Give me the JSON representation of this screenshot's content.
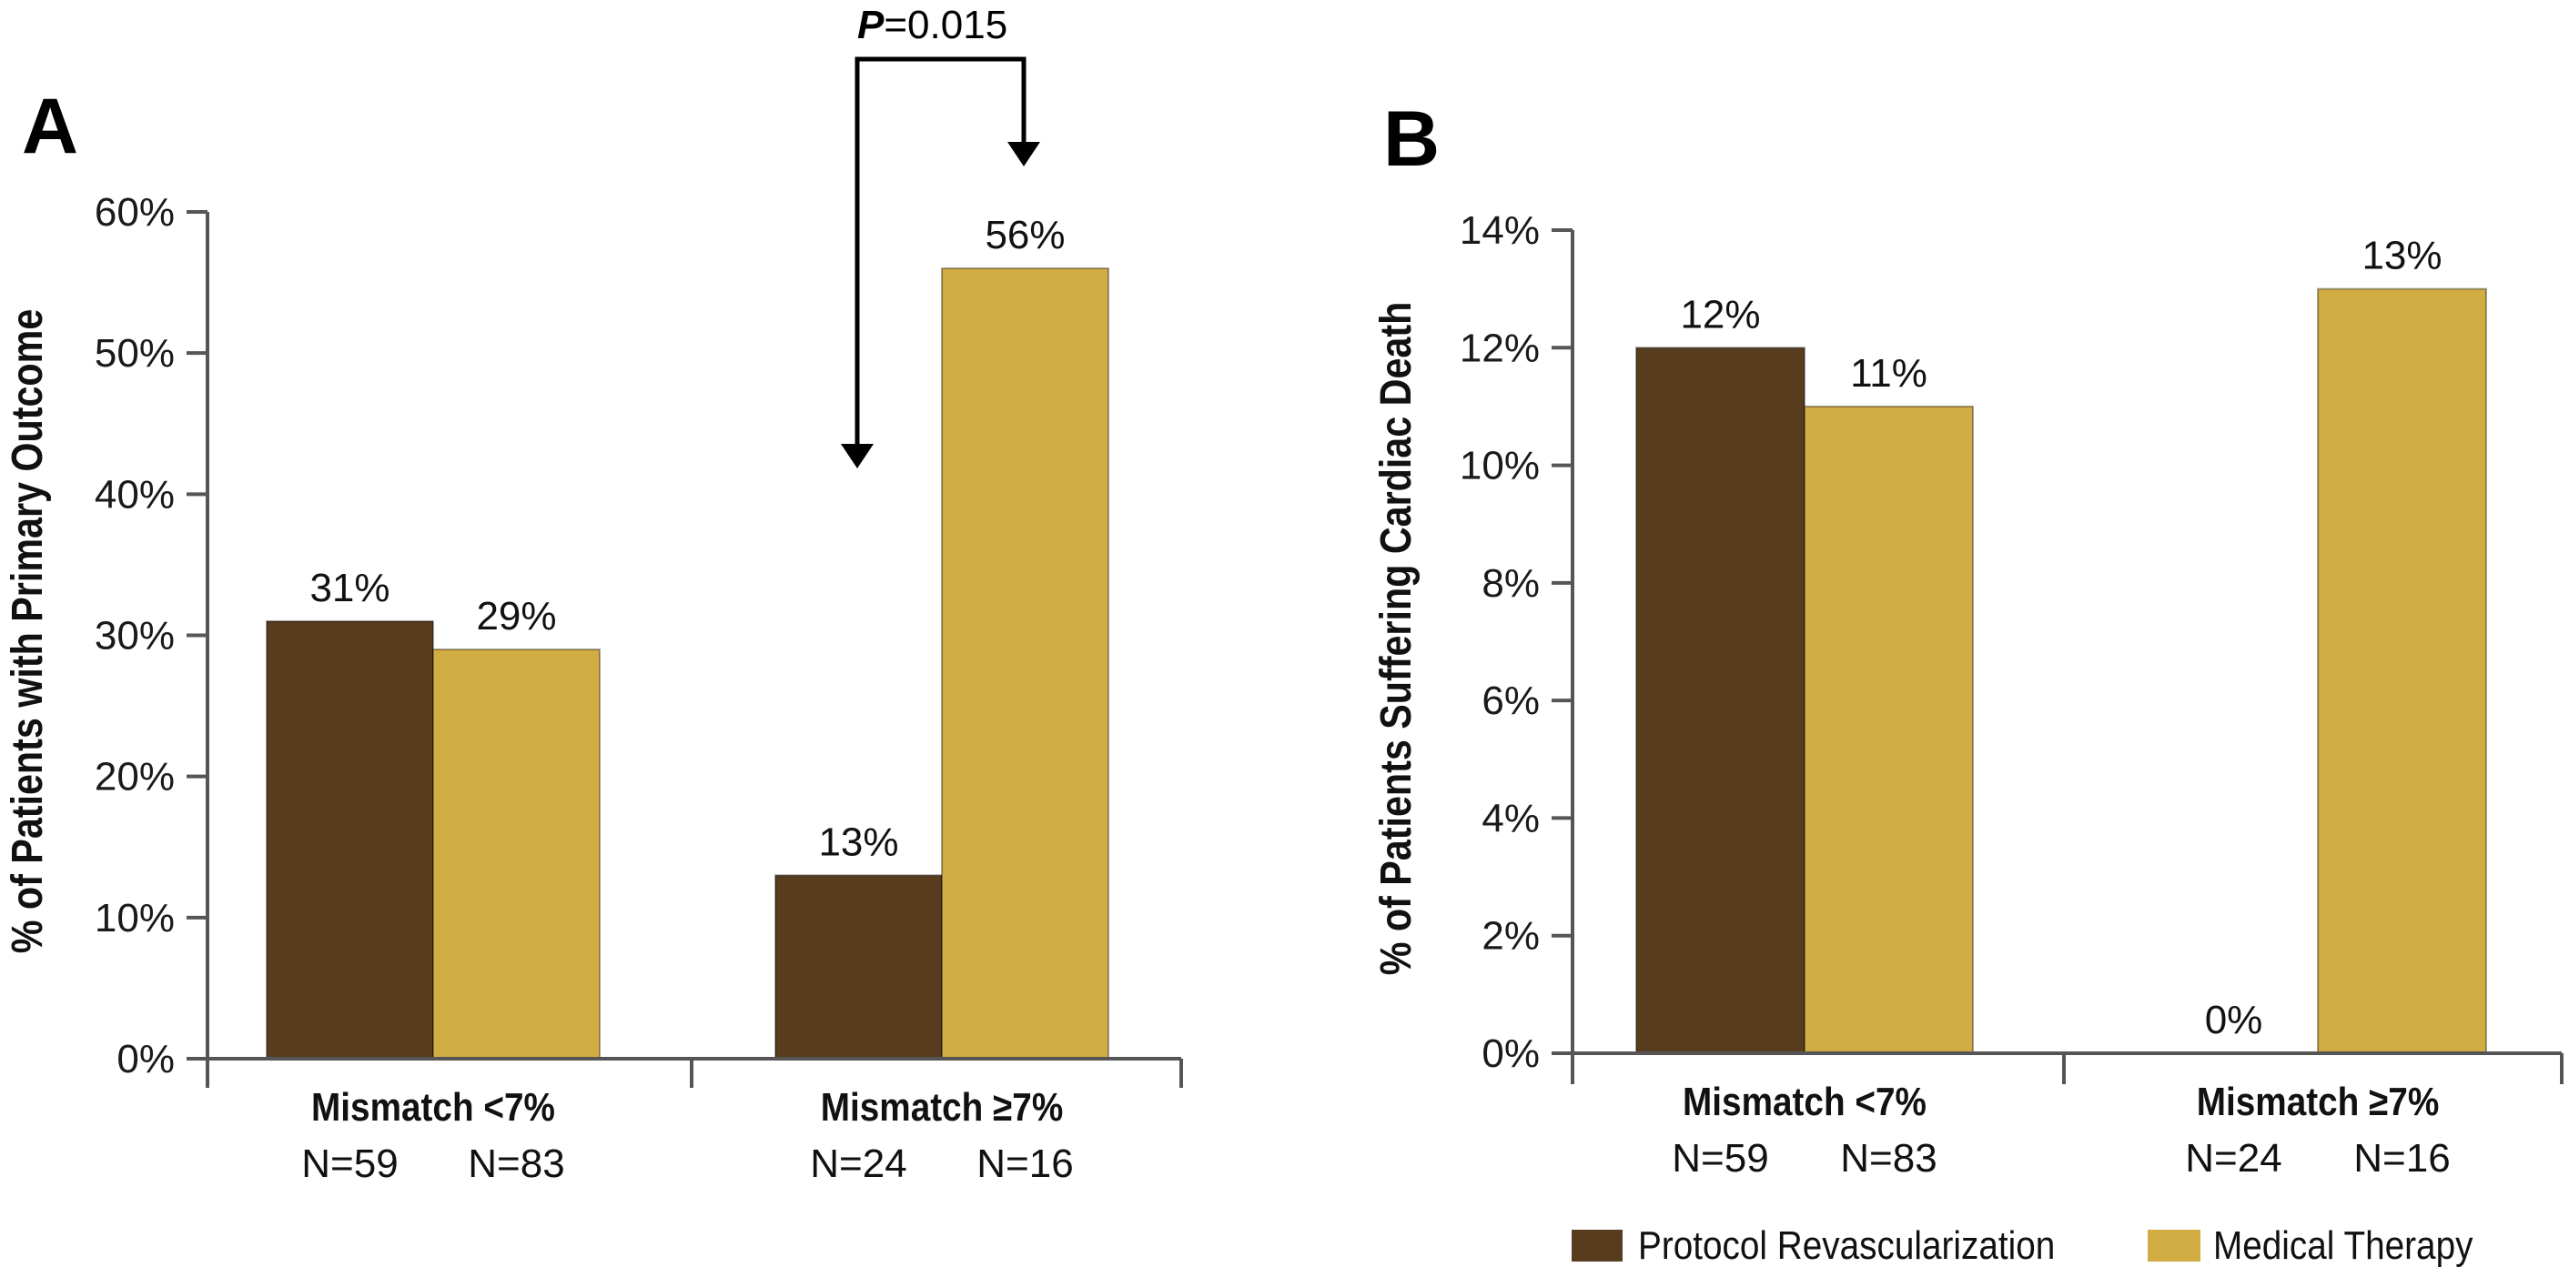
{
  "figure": {
    "legend": [
      {
        "label": "Protocol Revascularization",
        "color": "#573c1e"
      },
      {
        "label": "Medical Therapy",
        "color": "#d1ac42"
      }
    ]
  },
  "chart_data": [
    {
      "panel": "A",
      "type": "bar",
      "ylabel": "% of Patients with Primary Outcome",
      "xlabel": "",
      "ylim": [
        0,
        60
      ],
      "yticks": [
        "0%",
        "10%",
        "20%",
        "30%",
        "40%",
        "50%",
        "60%"
      ],
      "ytick_values": [
        0,
        10,
        20,
        30,
        40,
        50,
        60
      ],
      "grid": false,
      "categories": [
        "Mismatch <7%",
        "Mismatch ≥7%"
      ],
      "series": [
        {
          "name": "Protocol Revascularization",
          "color": "#573c1e",
          "values": [
            31,
            13
          ],
          "labels": [
            "31%",
            "13%"
          ],
          "n": [
            "N=59",
            "N=24"
          ]
        },
        {
          "name": "Medical Therapy",
          "color": "#d1ac42",
          "values": [
            29,
            56
          ],
          "labels": [
            "29%",
            "56%"
          ],
          "n": [
            "N=83",
            "N=16"
          ]
        }
      ],
      "annotation": {
        "p_symbol": "P",
        "p_text": "=0.015",
        "between": "Mismatch ≥7%: Protocol Revascularization vs Medical Therapy"
      }
    },
    {
      "panel": "B",
      "type": "bar",
      "ylabel": "% of Patients Suffering Cardiac Death",
      "xlabel": "",
      "ylim": [
        0,
        14
      ],
      "yticks": [
        "0%",
        "2%",
        "4%",
        "6%",
        "8%",
        "10%",
        "12%",
        "14%"
      ],
      "ytick_values": [
        0,
        2,
        4,
        6,
        8,
        10,
        12,
        14
      ],
      "grid": false,
      "categories": [
        "Mismatch <7%",
        "Mismatch ≥7%"
      ],
      "series": [
        {
          "name": "Protocol Revascularization",
          "color": "#573c1e",
          "values": [
            12,
            0
          ],
          "labels": [
            "12%",
            "0%"
          ],
          "n": [
            "N=59",
            "N=24"
          ]
        },
        {
          "name": "Medical Therapy",
          "color": "#d1ac42",
          "values": [
            11,
            13
          ],
          "labels": [
            "11%",
            "13%"
          ],
          "n": [
            "N=83",
            "N=16"
          ]
        }
      ],
      "legend_position": "bottom-right"
    }
  ]
}
